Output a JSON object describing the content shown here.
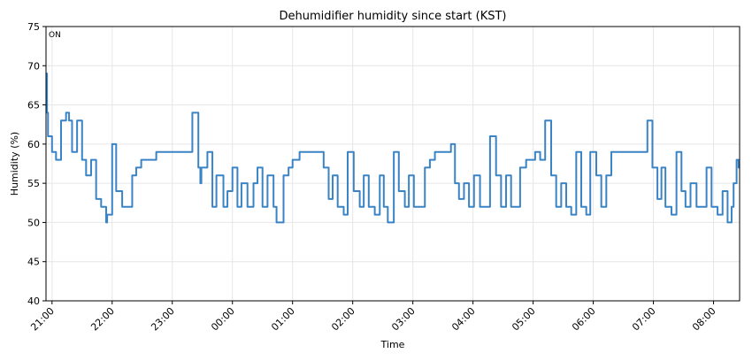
{
  "chart_data": {
    "type": "line",
    "step": true,
    "title": "Dehumidifier humidity since start (KST)",
    "xlabel": "Time",
    "ylabel": "Humidity (%)",
    "annotation": "ON",
    "annotation_color": "#2ca02c",
    "grid": true,
    "xlim": [
      "20:54",
      "08:26"
    ],
    "xticks": [
      "21:00",
      "22:00",
      "23:00",
      "00:00",
      "01:00",
      "02:00",
      "03:00",
      "04:00",
      "05:00",
      "06:00",
      "07:00",
      "08:00"
    ],
    "ylim": [
      40,
      75
    ],
    "yticks": [
      40,
      45,
      50,
      55,
      60,
      65,
      70,
      75
    ],
    "x": [
      "20:54",
      "20:55",
      "20:56",
      "21:00",
      "21:04",
      "21:09",
      "21:14",
      "21:17",
      "21:20",
      "21:25",
      "21:30",
      "21:34",
      "21:39",
      "21:44",
      "21:49",
      "21:54",
      "21:55",
      "22:00",
      "22:04",
      "22:10",
      "22:20",
      "22:24",
      "22:29",
      "22:44",
      "23:20",
      "23:26",
      "23:28",
      "23:29",
      "23:35",
      "23:40",
      "23:44",
      "23:51",
      "23:55",
      "00:00",
      "00:05",
      "00:09",
      "00:15",
      "00:21",
      "00:25",
      "00:30",
      "00:35",
      "00:41",
      "00:44",
      "00:51",
      "00:56",
      "01:00",
      "01:07",
      "01:31",
      "01:36",
      "01:40",
      "01:45",
      "01:51",
      "01:55",
      "02:01",
      "02:07",
      "02:11",
      "02:16",
      "02:22",
      "02:27",
      "02:31",
      "02:35",
      "02:41",
      "02:46",
      "02:52",
      "02:56",
      "03:01",
      "03:12",
      "03:17",
      "03:22",
      "03:38",
      "03:42",
      "03:46",
      "03:51",
      "03:56",
      "04:01",
      "04:07",
      "04:17",
      "04:23",
      "04:28",
      "04:33",
      "04:38",
      "04:47",
      "04:53",
      "05:02",
      "05:07",
      "05:12",
      "05:18",
      "05:23",
      "05:28",
      "05:33",
      "05:38",
      "05:43",
      "05:48",
      "05:53",
      "05:57",
      "06:03",
      "06:08",
      "06:13",
      "06:18",
      "06:54",
      "06:59",
      "07:04",
      "07:08",
      "07:12",
      "07:18",
      "07:23",
      "07:28",
      "07:32",
      "07:37",
      "07:43",
      "07:53",
      "07:58",
      "08:04",
      "08:09",
      "08:14",
      "08:18",
      "08:20",
      "08:23",
      "08:25",
      "08:26"
    ],
    "series": [
      {
        "name": "Humidity",
        "color": "#3a84c6",
        "values": [
          69,
          64,
          61,
          59,
          58,
          63,
          64,
          63,
          59,
          63,
          58,
          56,
          58,
          53,
          52,
          50,
          51,
          60,
          54,
          52,
          56,
          57,
          58,
          59,
          64,
          57,
          55,
          57,
          59,
          52,
          56,
          52,
          54,
          57,
          52,
          55,
          52,
          55,
          57,
          52,
          56,
          52,
          50,
          56,
          57,
          58,
          59,
          57,
          53,
          56,
          52,
          51,
          59,
          54,
          52,
          56,
          52,
          51,
          56,
          52,
          50,
          59,
          54,
          52,
          56,
          52,
          57,
          58,
          59,
          60,
          55,
          53,
          55,
          52,
          56,
          52,
          61,
          56,
          52,
          56,
          52,
          57,
          58,
          59,
          58,
          63,
          56,
          52,
          55,
          52,
          51,
          59,
          52,
          51,
          59,
          56,
          52,
          56,
          59,
          63,
          57,
          53,
          57,
          52,
          51,
          59,
          54,
          52,
          55,
          52,
          57,
          52,
          51,
          54,
          50,
          52,
          55,
          58,
          57,
          57
        ]
      }
    ]
  }
}
